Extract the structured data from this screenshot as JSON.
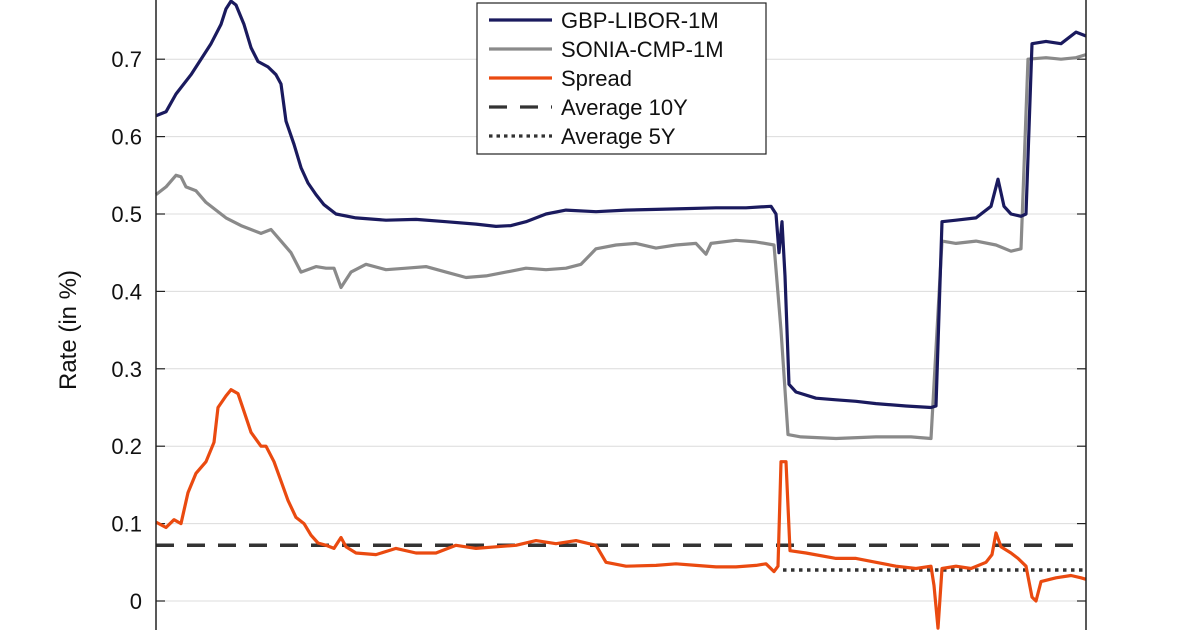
{
  "chart_data": {
    "type": "line",
    "title": "",
    "xlabel": "",
    "ylabel": "Rate (in %)",
    "ylim": [
      -0.035,
      0.78
    ],
    "yticks": [
      "0",
      "0.1",
      "0.2",
      "0.3",
      "0.4",
      "0.5",
      "0.6",
      "0.7"
    ],
    "ytick_values": [
      0,
      0.1,
      0.2,
      0.3,
      0.4,
      0.5,
      0.6,
      0.7
    ],
    "grid": true,
    "legend_position": "upper center",
    "x_note": "x is relative horizontal position 0-930 across the plot (no x tick labels visible)",
    "series": [
      {
        "name": "GBP-LIBOR-1M",
        "color": "#1a1a5e",
        "style": "solid",
        "points": [
          [
            0,
            0.627
          ],
          [
            10,
            0.632
          ],
          [
            20,
            0.655
          ],
          [
            35,
            0.68
          ],
          [
            45,
            0.7
          ],
          [
            55,
            0.72
          ],
          [
            65,
            0.745
          ],
          [
            70,
            0.765
          ],
          [
            75,
            0.775
          ],
          [
            80,
            0.77
          ],
          [
            88,
            0.745
          ],
          [
            95,
            0.715
          ],
          [
            102,
            0.697
          ],
          [
            112,
            0.69
          ],
          [
            120,
            0.68
          ],
          [
            125,
            0.668
          ],
          [
            130,
            0.62
          ],
          [
            138,
            0.59
          ],
          [
            145,
            0.56
          ],
          [
            152,
            0.54
          ],
          [
            160,
            0.525
          ],
          [
            168,
            0.512
          ],
          [
            180,
            0.5
          ],
          [
            200,
            0.495
          ],
          [
            230,
            0.492
          ],
          [
            260,
            0.493
          ],
          [
            290,
            0.49
          ],
          [
            320,
            0.487
          ],
          [
            340,
            0.484
          ],
          [
            355,
            0.485
          ],
          [
            370,
            0.49
          ],
          [
            390,
            0.5
          ],
          [
            410,
            0.505
          ],
          [
            440,
            0.503
          ],
          [
            470,
            0.505
          ],
          [
            500,
            0.506
          ],
          [
            530,
            0.507
          ],
          [
            560,
            0.508
          ],
          [
            590,
            0.508
          ],
          [
            615,
            0.51
          ],
          [
            620,
            0.5
          ],
          [
            623,
            0.45
          ],
          [
            626,
            0.49
          ],
          [
            629,
            0.42
          ],
          [
            633,
            0.28
          ],
          [
            640,
            0.27
          ],
          [
            660,
            0.262
          ],
          [
            680,
            0.26
          ],
          [
            700,
            0.258
          ],
          [
            720,
            0.255
          ],
          [
            750,
            0.252
          ],
          [
            775,
            0.25
          ],
          [
            780,
            0.252
          ],
          [
            786,
            0.49
          ],
          [
            800,
            0.492
          ],
          [
            820,
            0.495
          ],
          [
            835,
            0.51
          ],
          [
            842,
            0.545
          ],
          [
            848,
            0.51
          ],
          [
            855,
            0.5
          ],
          [
            865,
            0.497
          ],
          [
            870,
            0.5
          ],
          [
            876,
            0.72
          ],
          [
            890,
            0.723
          ],
          [
            905,
            0.72
          ],
          [
            920,
            0.735
          ],
          [
            930,
            0.73
          ]
        ]
      },
      {
        "name": "SONIA-CMP-1M",
        "color": "#8a8a8a",
        "style": "solid",
        "points": [
          [
            0,
            0.525
          ],
          [
            10,
            0.535
          ],
          [
            20,
            0.55
          ],
          [
            25,
            0.548
          ],
          [
            30,
            0.535
          ],
          [
            40,
            0.53
          ],
          [
            50,
            0.515
          ],
          [
            60,
            0.505
          ],
          [
            70,
            0.495
          ],
          [
            85,
            0.485
          ],
          [
            95,
            0.48
          ],
          [
            105,
            0.475
          ],
          [
            115,
            0.48
          ],
          [
            125,
            0.465
          ],
          [
            135,
            0.45
          ],
          [
            145,
            0.425
          ],
          [
            160,
            0.432
          ],
          [
            170,
            0.43
          ],
          [
            178,
            0.43
          ],
          [
            185,
            0.405
          ],
          [
            195,
            0.425
          ],
          [
            210,
            0.435
          ],
          [
            230,
            0.428
          ],
          [
            250,
            0.43
          ],
          [
            270,
            0.432
          ],
          [
            290,
            0.425
          ],
          [
            310,
            0.418
          ],
          [
            330,
            0.42
          ],
          [
            350,
            0.425
          ],
          [
            370,
            0.43
          ],
          [
            390,
            0.428
          ],
          [
            410,
            0.43
          ],
          [
            425,
            0.435
          ],
          [
            440,
            0.455
          ],
          [
            460,
            0.46
          ],
          [
            480,
            0.462
          ],
          [
            500,
            0.456
          ],
          [
            520,
            0.46
          ],
          [
            540,
            0.462
          ],
          [
            550,
            0.448
          ],
          [
            555,
            0.462
          ],
          [
            580,
            0.466
          ],
          [
            600,
            0.464
          ],
          [
            618,
            0.46
          ],
          [
            625,
            0.35
          ],
          [
            632,
            0.215
          ],
          [
            645,
            0.212
          ],
          [
            680,
            0.21
          ],
          [
            720,
            0.212
          ],
          [
            755,
            0.212
          ],
          [
            775,
            0.21
          ],
          [
            786,
            0.465
          ],
          [
            800,
            0.462
          ],
          [
            820,
            0.465
          ],
          [
            840,
            0.46
          ],
          [
            855,
            0.452
          ],
          [
            865,
            0.455
          ],
          [
            872,
            0.7
          ],
          [
            890,
            0.702
          ],
          [
            905,
            0.7
          ],
          [
            920,
            0.702
          ],
          [
            930,
            0.706
          ]
        ]
      },
      {
        "name": "Spread",
        "color": "#ea4a10",
        "style": "solid",
        "points": [
          [
            0,
            0.102
          ],
          [
            10,
            0.095
          ],
          [
            18,
            0.105
          ],
          [
            25,
            0.1
          ],
          [
            32,
            0.14
          ],
          [
            40,
            0.165
          ],
          [
            50,
            0.18
          ],
          [
            58,
            0.205
          ],
          [
            62,
            0.25
          ],
          [
            70,
            0.265
          ],
          [
            75,
            0.273
          ],
          [
            82,
            0.268
          ],
          [
            88,
            0.245
          ],
          [
            95,
            0.218
          ],
          [
            105,
            0.2
          ],
          [
            110,
            0.2
          ],
          [
            118,
            0.18
          ],
          [
            125,
            0.155
          ],
          [
            132,
            0.13
          ],
          [
            140,
            0.108
          ],
          [
            148,
            0.1
          ],
          [
            155,
            0.085
          ],
          [
            162,
            0.075
          ],
          [
            170,
            0.072
          ],
          [
            178,
            0.068
          ],
          [
            185,
            0.082
          ],
          [
            190,
            0.07
          ],
          [
            200,
            0.062
          ],
          [
            220,
            0.06
          ],
          [
            240,
            0.068
          ],
          [
            260,
            0.062
          ],
          [
            280,
            0.062
          ],
          [
            300,
            0.072
          ],
          [
            320,
            0.068
          ],
          [
            340,
            0.07
          ],
          [
            360,
            0.072
          ],
          [
            380,
            0.078
          ],
          [
            400,
            0.074
          ],
          [
            420,
            0.078
          ],
          [
            440,
            0.072
          ],
          [
            450,
            0.05
          ],
          [
            470,
            0.045
          ],
          [
            500,
            0.046
          ],
          [
            520,
            0.048
          ],
          [
            540,
            0.046
          ],
          [
            560,
            0.044
          ],
          [
            580,
            0.044
          ],
          [
            600,
            0.046
          ],
          [
            610,
            0.048
          ],
          [
            618,
            0.038
          ],
          [
            622,
            0.045
          ],
          [
            625,
            0.18
          ],
          [
            630,
            0.18
          ],
          [
            634,
            0.065
          ],
          [
            650,
            0.062
          ],
          [
            680,
            0.055
          ],
          [
            700,
            0.055
          ],
          [
            720,
            0.05
          ],
          [
            740,
            0.045
          ],
          [
            760,
            0.042
          ],
          [
            775,
            0.045
          ],
          [
            778,
            0.02
          ],
          [
            782,
            -0.035
          ],
          [
            786,
            0.042
          ],
          [
            800,
            0.045
          ],
          [
            815,
            0.042
          ],
          [
            830,
            0.05
          ],
          [
            836,
            0.06
          ],
          [
            840,
            0.088
          ],
          [
            845,
            0.07
          ],
          [
            855,
            0.062
          ],
          [
            862,
            0.055
          ],
          [
            870,
            0.045
          ],
          [
            876,
            0.005
          ],
          [
            880,
            0.0
          ],
          [
            885,
            0.025
          ],
          [
            900,
            0.03
          ],
          [
            915,
            0.033
          ],
          [
            925,
            0.03
          ],
          [
            930,
            0.028
          ]
        ]
      },
      {
        "name": "Average 10Y",
        "color": "#333333",
        "style": "dashed",
        "points": [
          [
            0,
            0.072
          ],
          [
            930,
            0.072
          ]
        ]
      },
      {
        "name": "Average 5Y",
        "color": "#333333",
        "style": "dotted",
        "points": [
          [
            627,
            0.04
          ],
          [
            930,
            0.04
          ]
        ]
      }
    ]
  },
  "legend": {
    "items": [
      {
        "label": "GBP-LIBOR-1M",
        "color": "#1a1a5e",
        "style": "solid"
      },
      {
        "label": "SONIA-CMP-1M",
        "color": "#8a8a8a",
        "style": "solid"
      },
      {
        "label": "Spread",
        "color": "#ea4a10",
        "style": "solid"
      },
      {
        "label": "Average 10Y",
        "color": "#333333",
        "style": "dashed"
      },
      {
        "label": "Average 5Y",
        "color": "#333333",
        "style": "dotted"
      }
    ]
  }
}
